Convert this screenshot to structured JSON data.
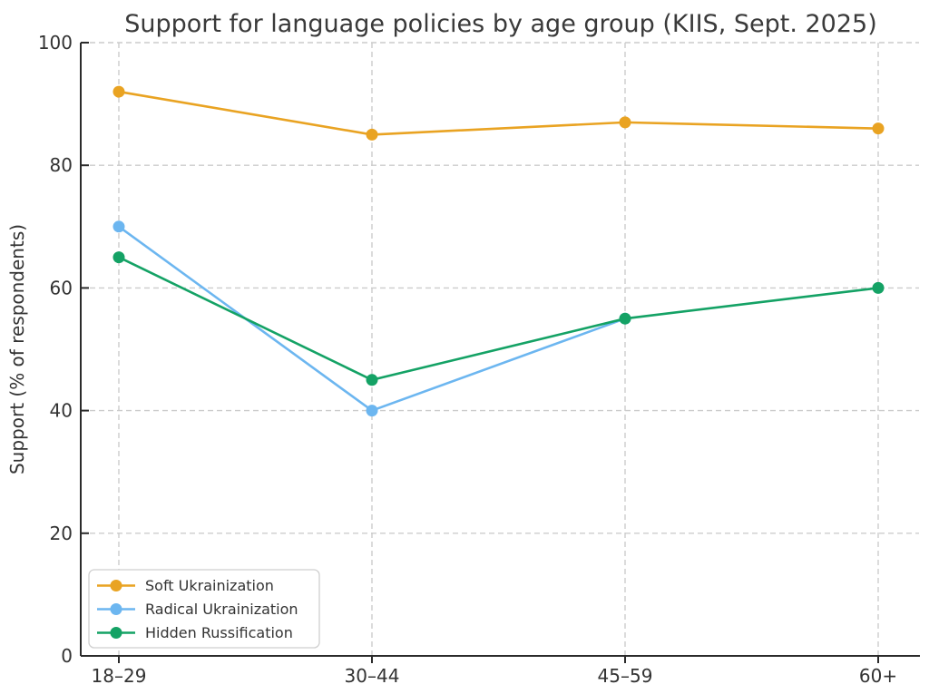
{
  "chart_data": {
    "type": "line",
    "title": "Support for language policies by age group (KIIS, Sept. 2025)",
    "xlabel": "",
    "ylabel": "Support (% of respondents)",
    "categories": [
      "18–29",
      "30–44",
      "45–59",
      "60+"
    ],
    "series": [
      {
        "name": "Soft Ukrainization",
        "color": "#E9A322",
        "values": [
          92,
          85,
          87,
          86
        ]
      },
      {
        "name": "Radical Ukrainization",
        "color": "#6CB6F0",
        "values": [
          70,
          40,
          55,
          null
        ]
      },
      {
        "name": "Hidden Russification",
        "color": "#14A265",
        "values": [
          65,
          45,
          55,
          60
        ]
      }
    ],
    "ylim": [
      0,
      100
    ],
    "yticks": [
      0,
      20,
      40,
      60,
      80,
      100
    ],
    "grid": true,
    "grid_style": "dashed",
    "legend_position": "lower left"
  },
  "colors": {
    "background": "#ffffff",
    "grid": "#cccccc",
    "spine": "#2b2b2b",
    "text": "#333333",
    "title_text": "#3a3a3a",
    "legend_border": "#cfcfcf",
    "legend_background": "#ffffff"
  }
}
